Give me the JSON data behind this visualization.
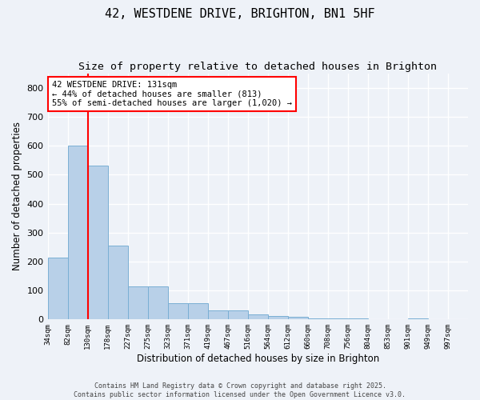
{
  "title1": "42, WESTDENE DRIVE, BRIGHTON, BN1 5HF",
  "title2": "Size of property relative to detached houses in Brighton",
  "xlabel": "Distribution of detached houses by size in Brighton",
  "ylabel": "Number of detached properties",
  "bar_values": [
    215,
    600,
    530,
    255,
    115,
    115,
    55,
    55,
    30,
    30,
    18,
    12,
    10,
    5,
    5,
    5,
    0,
    0,
    5,
    0,
    0
  ],
  "bin_edges": [
    0,
    1,
    2,
    3,
    4,
    5,
    6,
    7,
    8,
    9,
    10,
    11,
    12,
    13,
    14,
    15,
    16,
    17,
    18,
    19,
    20
  ],
  "x_tick_labels": [
    "34sqm",
    "82sqm",
    "130sqm",
    "178sqm",
    "227sqm",
    "275sqm",
    "323sqm",
    "371sqm",
    "419sqm",
    "467sqm",
    "516sqm",
    "564sqm",
    "612sqm",
    "660sqm",
    "708sqm",
    "756sqm",
    "804sqm",
    "853sqm",
    "901sqm",
    "949sqm",
    "997sqm"
  ],
  "bar_color": "#b8d0e8",
  "bar_edge_color": "#7aafd4",
  "red_line_index": 2,
  "ylim": [
    0,
    850
  ],
  "yticks": [
    0,
    100,
    200,
    300,
    400,
    500,
    600,
    700,
    800
  ],
  "annotation_title": "42 WESTDENE DRIVE: 131sqm",
  "annotation_line1": "← 44% of detached houses are smaller (813)",
  "annotation_line2": "55% of semi-detached houses are larger (1,020) →",
  "annotation_box_color": "white",
  "annotation_box_edge_color": "red",
  "footer1": "Contains HM Land Registry data © Crown copyright and database right 2025.",
  "footer2": "Contains public sector information licensed under the Open Government Licence v3.0.",
  "background_color": "#eef2f8",
  "grid_color": "white",
  "title1_fontsize": 11,
  "title2_fontsize": 9.5,
  "label_fontsize": 8.5
}
